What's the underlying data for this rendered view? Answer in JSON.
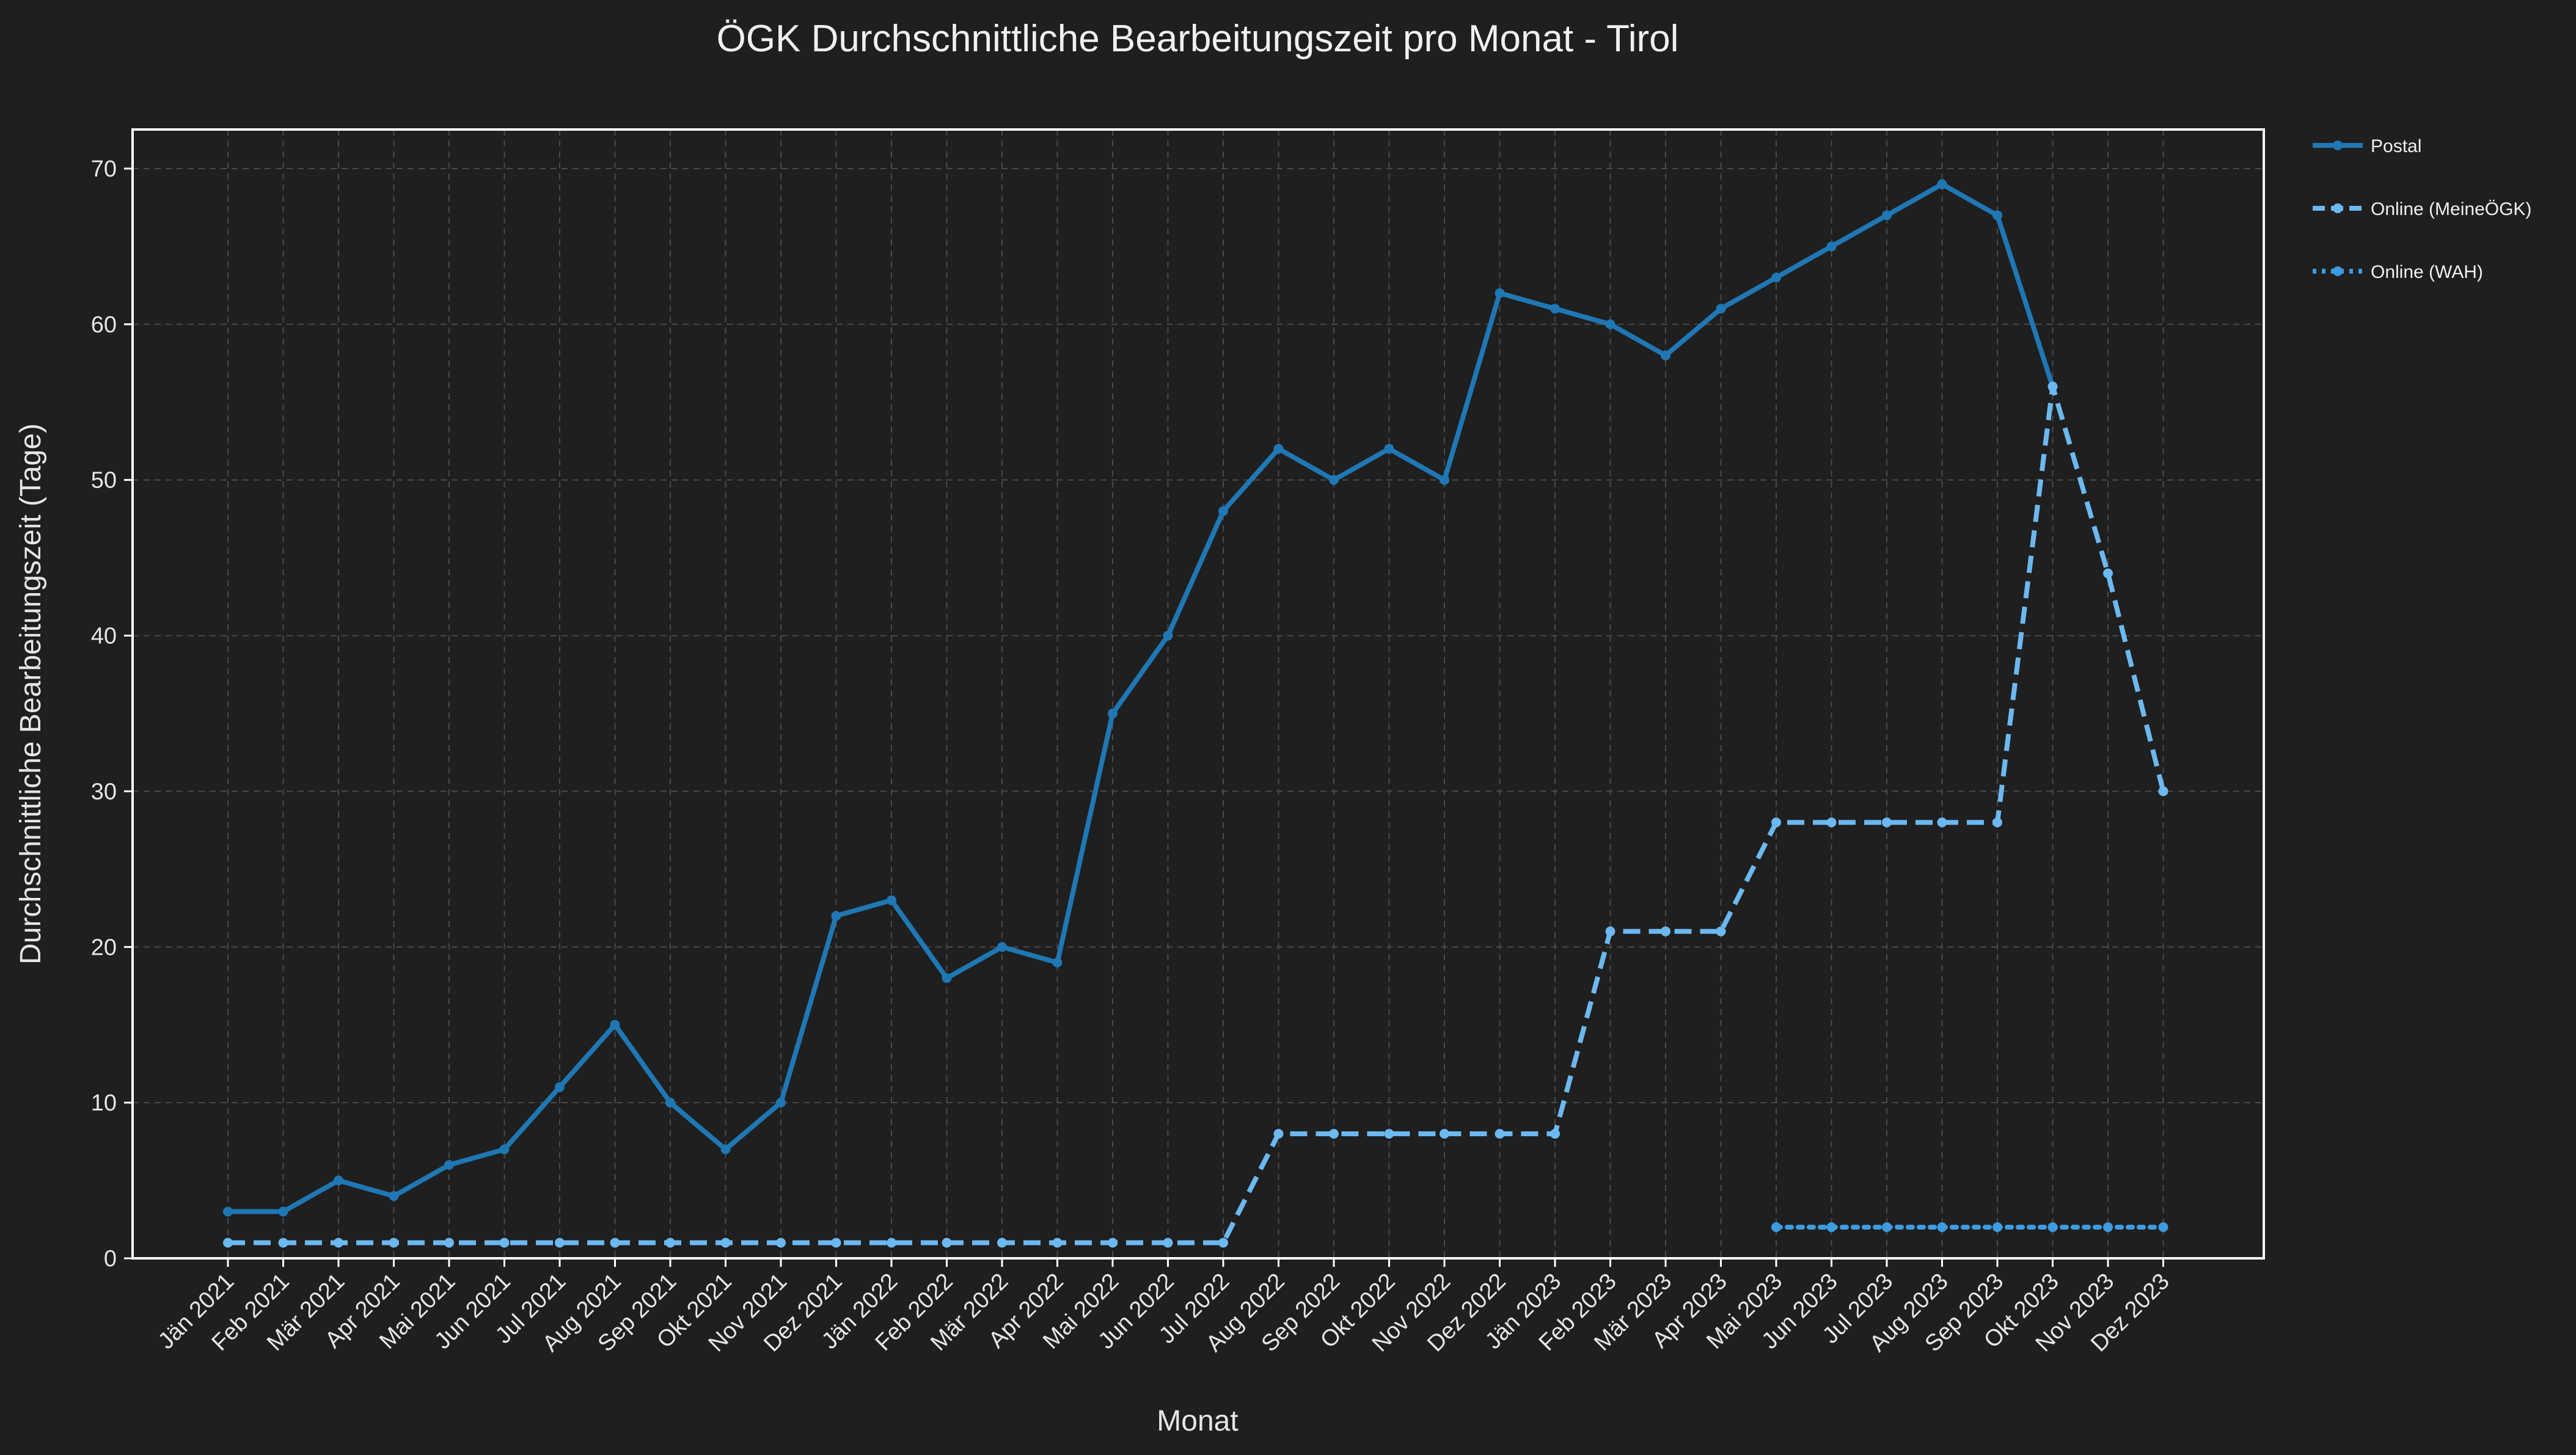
{
  "chart_data": {
    "type": "line",
    "title": "ÖGK Durchschnittliche Bearbeitungszeit pro Monat - Tirol",
    "xlabel": "Monat",
    "ylabel": "Durchschnittliche Bearbeitungszeit (Tage)",
    "ylim": [
      0,
      72
    ],
    "yticks": [
      0,
      10,
      20,
      30,
      40,
      50,
      60,
      70
    ],
    "grid": true,
    "legend_position": "outside-top-right",
    "categories": [
      "Jän 2021",
      "Feb 2021",
      "Mär 2021",
      "Apr 2021",
      "Mai 2021",
      "Jun 2021",
      "Jul 2021",
      "Aug 2021",
      "Sep 2021",
      "Okt 2021",
      "Nov 2021",
      "Dez 2021",
      "Jän 2022",
      "Feb 2022",
      "Mär 2022",
      "Apr 2022",
      "Mai 2022",
      "Jun 2022",
      "Jul 2022",
      "Aug 2022",
      "Sep 2022",
      "Okt 2022",
      "Nov 2022",
      "Dez 2022",
      "Jän 2023",
      "Feb 2023",
      "Mär 2023",
      "Apr 2023",
      "Mai 2023",
      "Jun 2023",
      "Jul 2023",
      "Aug 2023",
      "Sep 2023",
      "Okt 2023",
      "Nov 2023",
      "Dez 2023"
    ],
    "series": [
      {
        "name": "Postal",
        "style": "solid",
        "color": "#1f77b4",
        "values": [
          3,
          3,
          5,
          4,
          6,
          7,
          11,
          15,
          10,
          7,
          10,
          22,
          23,
          18,
          20,
          19,
          35,
          40,
          48,
          52,
          50,
          52,
          50,
          62,
          61,
          60,
          58,
          61,
          63,
          65,
          67,
          69,
          67,
          56,
          null,
          null
        ]
      },
      {
        "name": "Online (MeineÖGK)",
        "style": "dashed",
        "color": "#6cb8f0",
        "values": [
          1,
          1,
          1,
          1,
          1,
          1,
          1,
          1,
          1,
          1,
          1,
          1,
          1,
          1,
          1,
          1,
          1,
          1,
          1,
          8,
          8,
          8,
          8,
          8,
          8,
          21,
          21,
          21,
          28,
          28,
          28,
          28,
          28,
          56,
          44,
          30
        ]
      },
      {
        "name": "Online (WAH)",
        "style": "dotted",
        "color": "#3d9be0",
        "values": [
          null,
          null,
          null,
          null,
          null,
          null,
          null,
          null,
          null,
          null,
          null,
          null,
          null,
          null,
          null,
          null,
          null,
          null,
          null,
          null,
          null,
          null,
          null,
          null,
          null,
          null,
          null,
          null,
          2,
          2,
          2,
          2,
          2,
          2,
          2,
          2
        ]
      }
    ]
  },
  "colors": {
    "background": "#1f1f1f",
    "plot_border": "#ffffff",
    "grid": "#4a4a4a",
    "text": "#e6e6e6"
  }
}
